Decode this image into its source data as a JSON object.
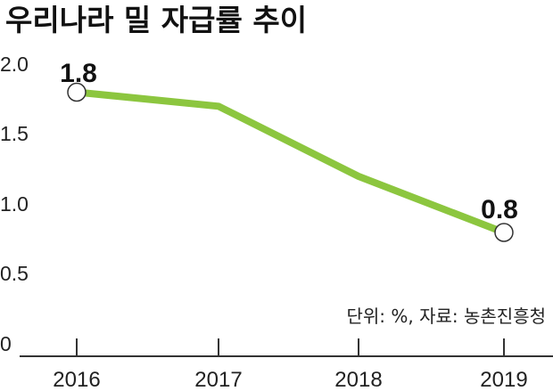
{
  "chart_data": {
    "type": "line",
    "title": "우리나라 밀 자급률 추이",
    "x": [
      "2016",
      "2017",
      "2018",
      "2019"
    ],
    "series": [
      {
        "values": [
          1.8,
          1.7,
          1.2,
          0.8
        ],
        "color": "#8cc63f"
      }
    ],
    "ylim": [
      0,
      2.0
    ],
    "yticks": [
      "2.0",
      "1.5",
      "1.0",
      "0.5",
      "0"
    ],
    "data_labels": [
      "1.8",
      "0.8"
    ],
    "source_note": "단위: %, 자료: 농촌진흥청",
    "grid": false
  }
}
